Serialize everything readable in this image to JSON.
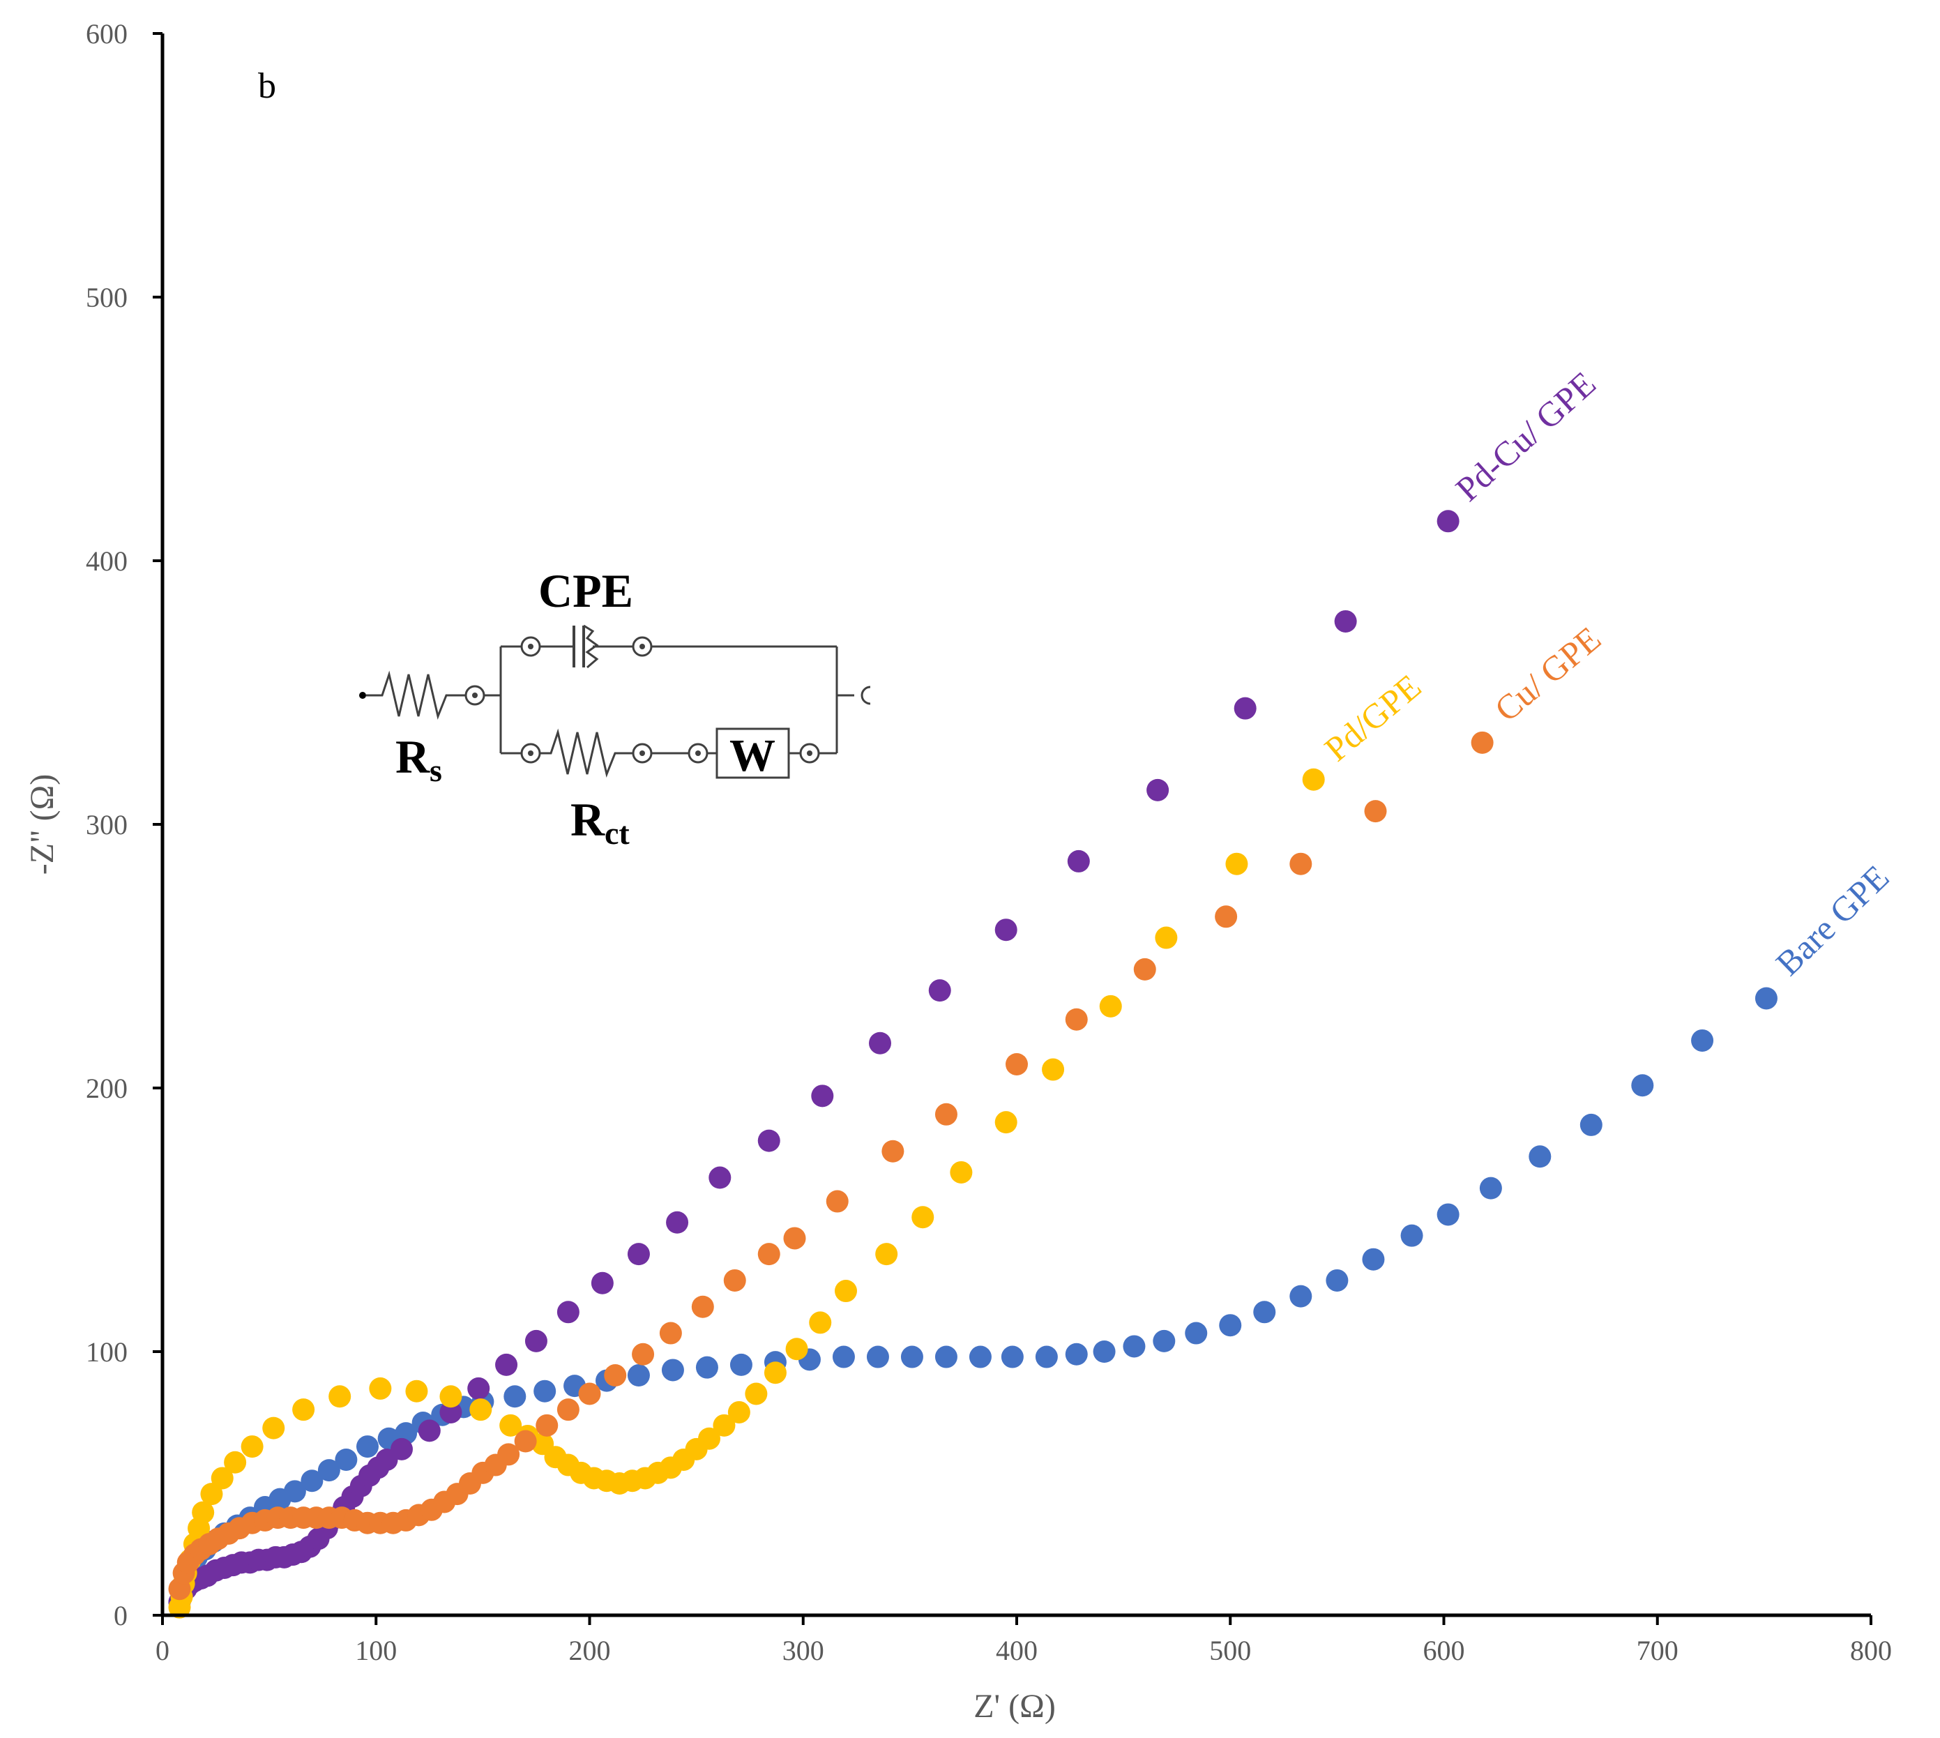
{
  "chart_data": {
    "type": "scatter",
    "panel_label": "b",
    "xlabel": "Z' (Ω)",
    "ylabel": "-Z\" (Ω)",
    "xlim": [
      0,
      800
    ],
    "ylim": [
      0,
      600
    ],
    "xticks": [
      "0",
      "100",
      "200",
      "300",
      "400",
      "500",
      "600",
      "700",
      "800"
    ],
    "yticks": [
      "0",
      "100",
      "200",
      "300",
      "400",
      "500",
      "600"
    ],
    "grid": false,
    "legend": "labels placed at the end of each series",
    "circuit": {
      "cpe_label": "CPE",
      "rs_label": "R",
      "rs_sub": "s",
      "rct_label": "R",
      "rct_sub": "ct",
      "w_label": "W"
    },
    "series": [
      {
        "name": "Bare GPE",
        "color": "#4472C4",
        "points": [
          [
            8,
            5
          ],
          [
            9,
            10
          ],
          [
            11,
            14
          ],
          [
            13,
            18
          ],
          [
            16,
            22
          ],
          [
            20,
            25
          ],
          [
            24,
            28
          ],
          [
            29,
            31
          ],
          [
            35,
            34
          ],
          [
            41,
            37
          ],
          [
            48,
            41
          ],
          [
            55,
            44
          ],
          [
            62,
            47
          ],
          [
            70,
            51
          ],
          [
            78,
            55
          ],
          [
            86,
            59
          ],
          [
            96,
            64
          ],
          [
            106,
            67
          ],
          [
            114,
            69
          ],
          [
            122,
            73
          ],
          [
            131,
            76
          ],
          [
            141,
            79
          ],
          [
            150,
            81
          ],
          [
            165,
            83
          ],
          [
            179,
            85
          ],
          [
            193,
            87
          ],
          [
            208,
            89
          ],
          [
            223,
            91
          ],
          [
            239,
            93
          ],
          [
            255,
            94
          ],
          [
            271,
            95
          ],
          [
            287,
            96
          ],
          [
            303,
            97
          ],
          [
            319,
            98
          ],
          [
            335,
            98
          ],
          [
            351,
            98
          ],
          [
            367,
            98
          ],
          [
            383,
            98
          ],
          [
            398,
            98
          ],
          [
            414,
            98
          ],
          [
            428,
            99
          ],
          [
            441,
            100
          ],
          [
            455,
            102
          ],
          [
            469,
            104
          ],
          [
            484,
            107
          ],
          [
            500,
            110
          ],
          [
            516,
            115
          ],
          [
            533,
            121
          ],
          [
            550,
            127
          ],
          [
            567,
            135
          ],
          [
            585,
            144
          ],
          [
            602,
            152
          ],
          [
            622,
            162
          ],
          [
            645,
            174
          ],
          [
            669,
            186
          ],
          [
            693,
            201
          ],
          [
            721,
            218
          ],
          [
            751,
            234
          ]
        ]
      },
      {
        "name": "Pd-Cu/ GPE",
        "color": "#7030A0",
        "points": [
          [
            8,
            5
          ],
          [
            9,
            8
          ],
          [
            11,
            10
          ],
          [
            13,
            12
          ],
          [
            15,
            13
          ],
          [
            18,
            14
          ],
          [
            21,
            15
          ],
          [
            25,
            17
          ],
          [
            29,
            18
          ],
          [
            33,
            19
          ],
          [
            37,
            20
          ],
          [
            41,
            20
          ],
          [
            45,
            21
          ],
          [
            49,
            21
          ],
          [
            53,
            22
          ],
          [
            57,
            22
          ],
          [
            61,
            23
          ],
          [
            65,
            24
          ],
          [
            69,
            26
          ],
          [
            73,
            29
          ],
          [
            77,
            33
          ],
          [
            81,
            37
          ],
          [
            85,
            41
          ],
          [
            89,
            45
          ],
          [
            93,
            49
          ],
          [
            97,
            53
          ],
          [
            101,
            56
          ],
          [
            105,
            59
          ],
          [
            112,
            63
          ],
          [
            125,
            70
          ],
          [
            135,
            77
          ],
          [
            148,
            86
          ],
          [
            161,
            95
          ],
          [
            175,
            104
          ],
          [
            190,
            115
          ],
          [
            206,
            126
          ],
          [
            223,
            137
          ],
          [
            241,
            149
          ],
          [
            261,
            166
          ],
          [
            284,
            180
          ],
          [
            309,
            197
          ],
          [
            336,
            217
          ],
          [
            364,
            237
          ],
          [
            395,
            260
          ],
          [
            429,
            286
          ],
          [
            466,
            313
          ],
          [
            507,
            344
          ],
          [
            554,
            377
          ],
          [
            602,
            415
          ]
        ]
      },
      {
        "name": "Pd/GPE",
        "color": "#FFC000",
        "points": [
          [
            8,
            3
          ],
          [
            9,
            7
          ],
          [
            10,
            12
          ],
          [
            11,
            16
          ],
          [
            13,
            21
          ],
          [
            15,
            27
          ],
          [
            17,
            33
          ],
          [
            19,
            39
          ],
          [
            23,
            46
          ],
          [
            28,
            52
          ],
          [
            34,
            58
          ],
          [
            42,
            64
          ],
          [
            52,
            71
          ],
          [
            66,
            78
          ],
          [
            83,
            83
          ],
          [
            102,
            86
          ],
          [
            119,
            85
          ],
          [
            135,
            83
          ],
          [
            149,
            78
          ],
          [
            163,
            72
          ],
          [
            171,
            68
          ],
          [
            178,
            65
          ],
          [
            184,
            60
          ],
          [
            190,
            57
          ],
          [
            196,
            54
          ],
          [
            202,
            52
          ],
          [
            208,
            51
          ],
          [
            214,
            50
          ],
          [
            220,
            51
          ],
          [
            226,
            52
          ],
          [
            232,
            54
          ],
          [
            238,
            56
          ],
          [
            244,
            59
          ],
          [
            250,
            63
          ],
          [
            256,
            67
          ],
          [
            263,
            72
          ],
          [
            270,
            77
          ],
          [
            278,
            84
          ],
          [
            287,
            92
          ],
          [
            297,
            101
          ],
          [
            308,
            111
          ],
          [
            320,
            123
          ],
          [
            339,
            137
          ],
          [
            356,
            151
          ],
          [
            374,
            168
          ],
          [
            395,
            187
          ],
          [
            417,
            207
          ],
          [
            444,
            231
          ],
          [
            470,
            257
          ],
          [
            503,
            285
          ],
          [
            539,
            317
          ]
        ]
      },
      {
        "name": "Cu/ GPE",
        "color": "#ED7D31",
        "points": [
          [
            8,
            10
          ],
          [
            10,
            16
          ],
          [
            12,
            20
          ],
          [
            15,
            23
          ],
          [
            18,
            25
          ],
          [
            22,
            27
          ],
          [
            26,
            29
          ],
          [
            31,
            31
          ],
          [
            36,
            33
          ],
          [
            42,
            35
          ],
          [
            48,
            36
          ],
          [
            54,
            37
          ],
          [
            60,
            37
          ],
          [
            66,
            37
          ],
          [
            72,
            37
          ],
          [
            78,
            37
          ],
          [
            84,
            37
          ],
          [
            90,
            36
          ],
          [
            96,
            35
          ],
          [
            102,
            35
          ],
          [
            108,
            35
          ],
          [
            114,
            36
          ],
          [
            120,
            38
          ],
          [
            126,
            40
          ],
          [
            132,
            43
          ],
          [
            138,
            46
          ],
          [
            144,
            50
          ],
          [
            150,
            54
          ],
          [
            156,
            57
          ],
          [
            162,
            61
          ],
          [
            170,
            66
          ],
          [
            180,
            72
          ],
          [
            190,
            78
          ],
          [
            200,
            84
          ],
          [
            212,
            91
          ],
          [
            225,
            99
          ],
          [
            238,
            107
          ],
          [
            253,
            117
          ],
          [
            268,
            127
          ],
          [
            284,
            137
          ],
          [
            296,
            143
          ],
          [
            316,
            157
          ],
          [
            342,
            176
          ],
          [
            367,
            190
          ],
          [
            400,
            209
          ],
          [
            428,
            226
          ],
          [
            460,
            245
          ],
          [
            498,
            265
          ],
          [
            533,
            285
          ],
          [
            568,
            305
          ],
          [
            618,
            331
          ]
        ]
      }
    ]
  }
}
